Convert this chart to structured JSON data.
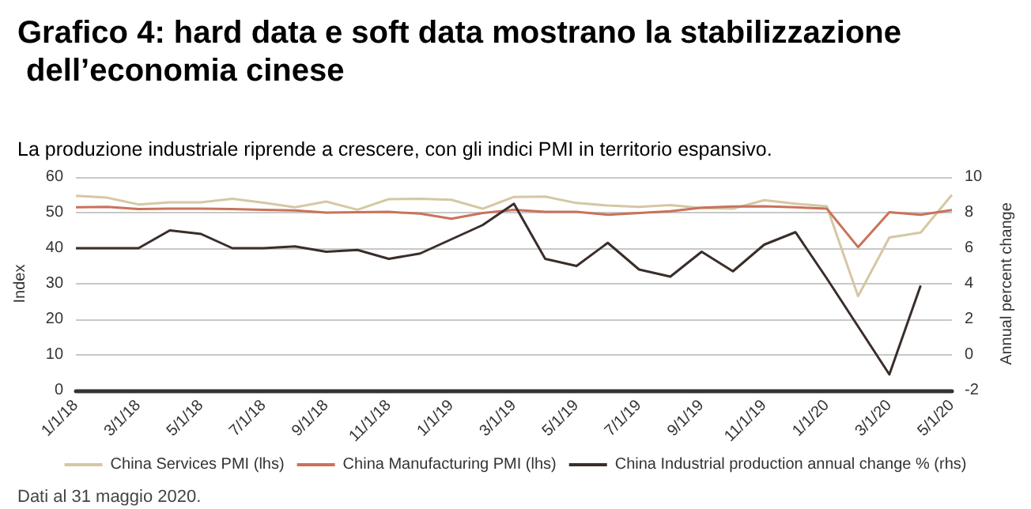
{
  "chart_data": {
    "type": "line",
    "title": "Grafico 4: hard data e soft data mostrano la stabilizzazione dell’economia cinese",
    "subtitle": "La produzione industriale riprende a crescere, con gli indici PMI in territorio espansivo.",
    "ylabel": "Index",
    "y2label": "Annual percent change",
    "annotations": [
      "Dati al 31 maggio 2020."
    ],
    "categories": [
      "1/1/18",
      null,
      "3/1/18",
      null,
      "5/1/18",
      null,
      "7/1/18",
      null,
      "9/1/18",
      null,
      "11/1/18",
      null,
      "1/1/19",
      null,
      "3/1/19",
      null,
      "5/1/19",
      null,
      "7/1/19",
      null,
      "9/1/19",
      null,
      "11/1/19",
      null,
      "1/1/20",
      null,
      "3/1/20",
      null,
      "5/1/20"
    ],
    "series": [
      {
        "name": "China Services PMI (lhs)",
        "color": "#d6c7a4",
        "values": [
          54.7,
          54.2,
          52.3,
          52.9,
          52.9,
          53.9,
          52.8,
          51.5,
          53.1,
          50.8,
          53.8,
          53.9,
          53.6,
          51.1,
          54.4,
          54.5,
          52.7,
          52.0,
          51.6,
          52.1,
          51.3,
          51.1,
          53.5,
          52.5,
          51.8,
          26.5,
          43.0,
          44.4,
          55.0
        ]
      },
      {
        "name": "China Manufacturing PMI (lhs)",
        "color": "#c8735a",
        "values": [
          51.5,
          51.6,
          51.0,
          51.1,
          51.1,
          51.0,
          50.8,
          50.6,
          50.0,
          50.1,
          50.2,
          49.7,
          48.3,
          49.9,
          50.8,
          50.2,
          50.2,
          49.4,
          49.9,
          50.4,
          51.4,
          51.7,
          51.8,
          51.5,
          51.1,
          40.3,
          50.1,
          49.4,
          50.7
        ]
      },
      {
        "name": "China Industrial production annual change % (rhs)",
        "color": "#3a2e2a",
        "axis": "y2",
        "values": [
          6.0,
          6.0,
          6.0,
          7.0,
          6.8,
          6.0,
          6.0,
          6.1,
          5.8,
          5.9,
          5.4,
          5.7,
          6.5,
          7.3,
          8.5,
          5.4,
          5.0,
          6.3,
          4.8,
          4.4,
          5.8,
          4.7,
          6.2,
          6.9,
          4.3,
          1.6,
          -1.1,
          3.9,
          null
        ]
      }
    ],
    "ylim": [
      0,
      60
    ],
    "yticks": [
      0,
      10,
      20,
      30,
      40,
      50,
      60
    ],
    "y2lim": [
      -2,
      10
    ],
    "y2ticks": [
      -2,
      0,
      2,
      4,
      6,
      8,
      10
    ],
    "grid": "y",
    "legend": "bottom",
    "marker": "none",
    "line_style": "solid"
  }
}
